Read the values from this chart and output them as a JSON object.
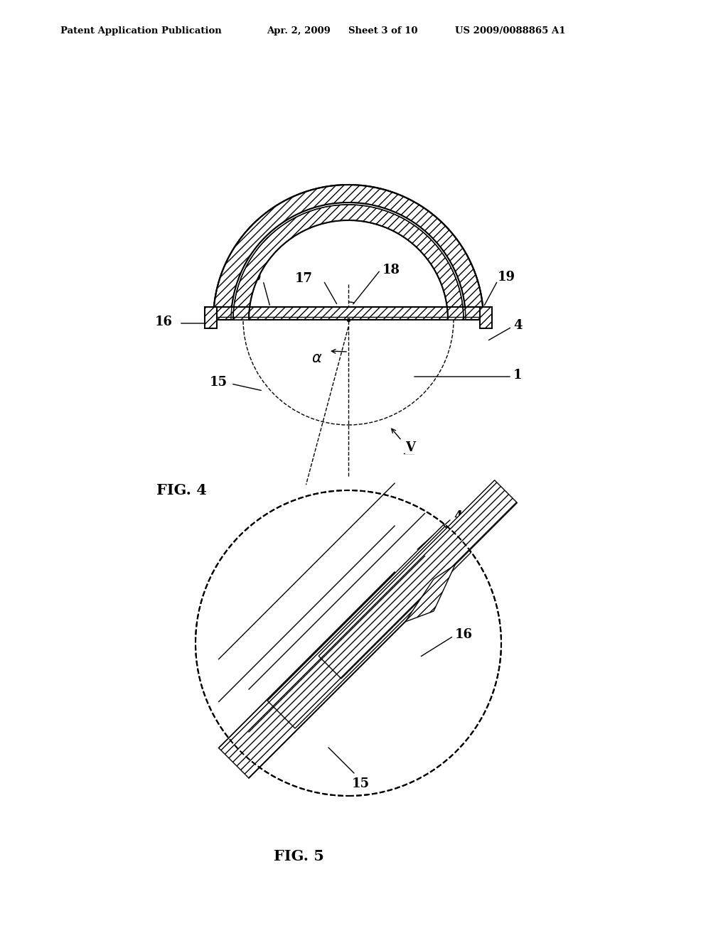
{
  "bg_color": "#ffffff",
  "header_text": "Patent Application Publication",
  "header_date": "Apr. 2, 2009",
  "header_sheet": "Sheet 3 of 10",
  "header_patent": "US 2009/0088865 A1",
  "fig4_label": "FIG. 4",
  "fig5_label": "FIG. 5",
  "line_color": "#000000",
  "hatch_color": "#000000",
  "dashed_color": "#555555"
}
